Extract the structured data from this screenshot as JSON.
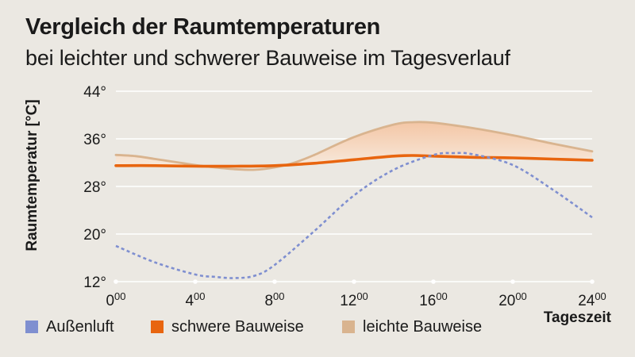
{
  "header": {
    "title": "Vergleich der Raumtemperaturen",
    "subtitle": "bei leichter und schwerer Bauweise im Tagesverlauf"
  },
  "colors": {
    "aussenluft": "#7f8fd0",
    "schwer": "#e8650f",
    "leicht": "#d9b48f",
    "fill_top": "#f4c6a5",
    "fill_bottom": "#f7e9dc",
    "grid": "#ffffff",
    "background": "#ebe8e2"
  },
  "legend": {
    "items": [
      {
        "label": "Außenluft",
        "color": "#7f8fd0"
      },
      {
        "label": "schwere Bauweise",
        "color": "#e8650f"
      },
      {
        "label": "leichte Bauweise",
        "color": "#d9b48f"
      }
    ],
    "placement": "bottom"
  },
  "chart_data": {
    "type": "line",
    "title": "Vergleich der Raumtemperaturen",
    "subtitle": "bei leichter und schwerer Bauweise im Tagesverlauf",
    "xlabel": "Tageszeit",
    "ylabel": "Raumtemperatur [°C]",
    "xlim": [
      0,
      24
    ],
    "ylim": [
      12,
      44
    ],
    "yticks": [
      {
        "value": 12,
        "label": "12°"
      },
      {
        "value": 20,
        "label": "20°"
      },
      {
        "value": 28,
        "label": "28°"
      },
      {
        "value": 36,
        "label": "36°"
      },
      {
        "value": 44,
        "label": "44°"
      }
    ],
    "xticks": [
      {
        "value": 0,
        "main": "0",
        "sup": "00"
      },
      {
        "value": 4,
        "main": "4",
        "sup": "00"
      },
      {
        "value": 8,
        "main": "8",
        "sup": "00"
      },
      {
        "value": 12,
        "main": "12",
        "sup": "00"
      },
      {
        "value": 16,
        "main": "16",
        "sup": "00"
      },
      {
        "value": 20,
        "main": "20",
        "sup": "00"
      },
      {
        "value": 24,
        "main": "24",
        "sup": "00"
      }
    ],
    "grid": "horizontal",
    "series": [
      {
        "name": "Außenluft",
        "style": "dotted",
        "color": "#7f8fd0",
        "x": [
          0,
          2,
          4,
          5,
          6,
          7,
          8,
          10,
          12,
          14,
          16,
          17,
          18,
          20,
          22,
          24
        ],
        "y": [
          18.0,
          15.2,
          13.2,
          12.8,
          12.6,
          13.0,
          14.8,
          20.5,
          26.5,
          30.8,
          33.3,
          33.6,
          33.4,
          31.6,
          27.5,
          22.8
        ]
      },
      {
        "name": "schwere Bauweise",
        "style": "solid",
        "color": "#e8650f",
        "x": [
          0,
          2,
          4,
          6,
          8,
          10,
          12,
          14,
          15,
          16,
          18,
          20,
          22,
          24
        ],
        "y": [
          31.5,
          31.5,
          31.4,
          31.4,
          31.5,
          31.9,
          32.5,
          33.1,
          33.2,
          33.1,
          32.9,
          32.8,
          32.6,
          32.4
        ]
      },
      {
        "name": "leichte Bauweise",
        "style": "solid",
        "color": "#d9b48f",
        "x": [
          0,
          1,
          2,
          4,
          5,
          6,
          7,
          8,
          9,
          10,
          12,
          14,
          15,
          16,
          18,
          20,
          22,
          24
        ],
        "y": [
          33.3,
          33.1,
          32.6,
          31.6,
          31.2,
          30.9,
          30.8,
          31.2,
          32.0,
          33.3,
          36.3,
          38.4,
          38.8,
          38.7,
          37.8,
          36.6,
          35.2,
          33.9
        ]
      }
    ]
  }
}
